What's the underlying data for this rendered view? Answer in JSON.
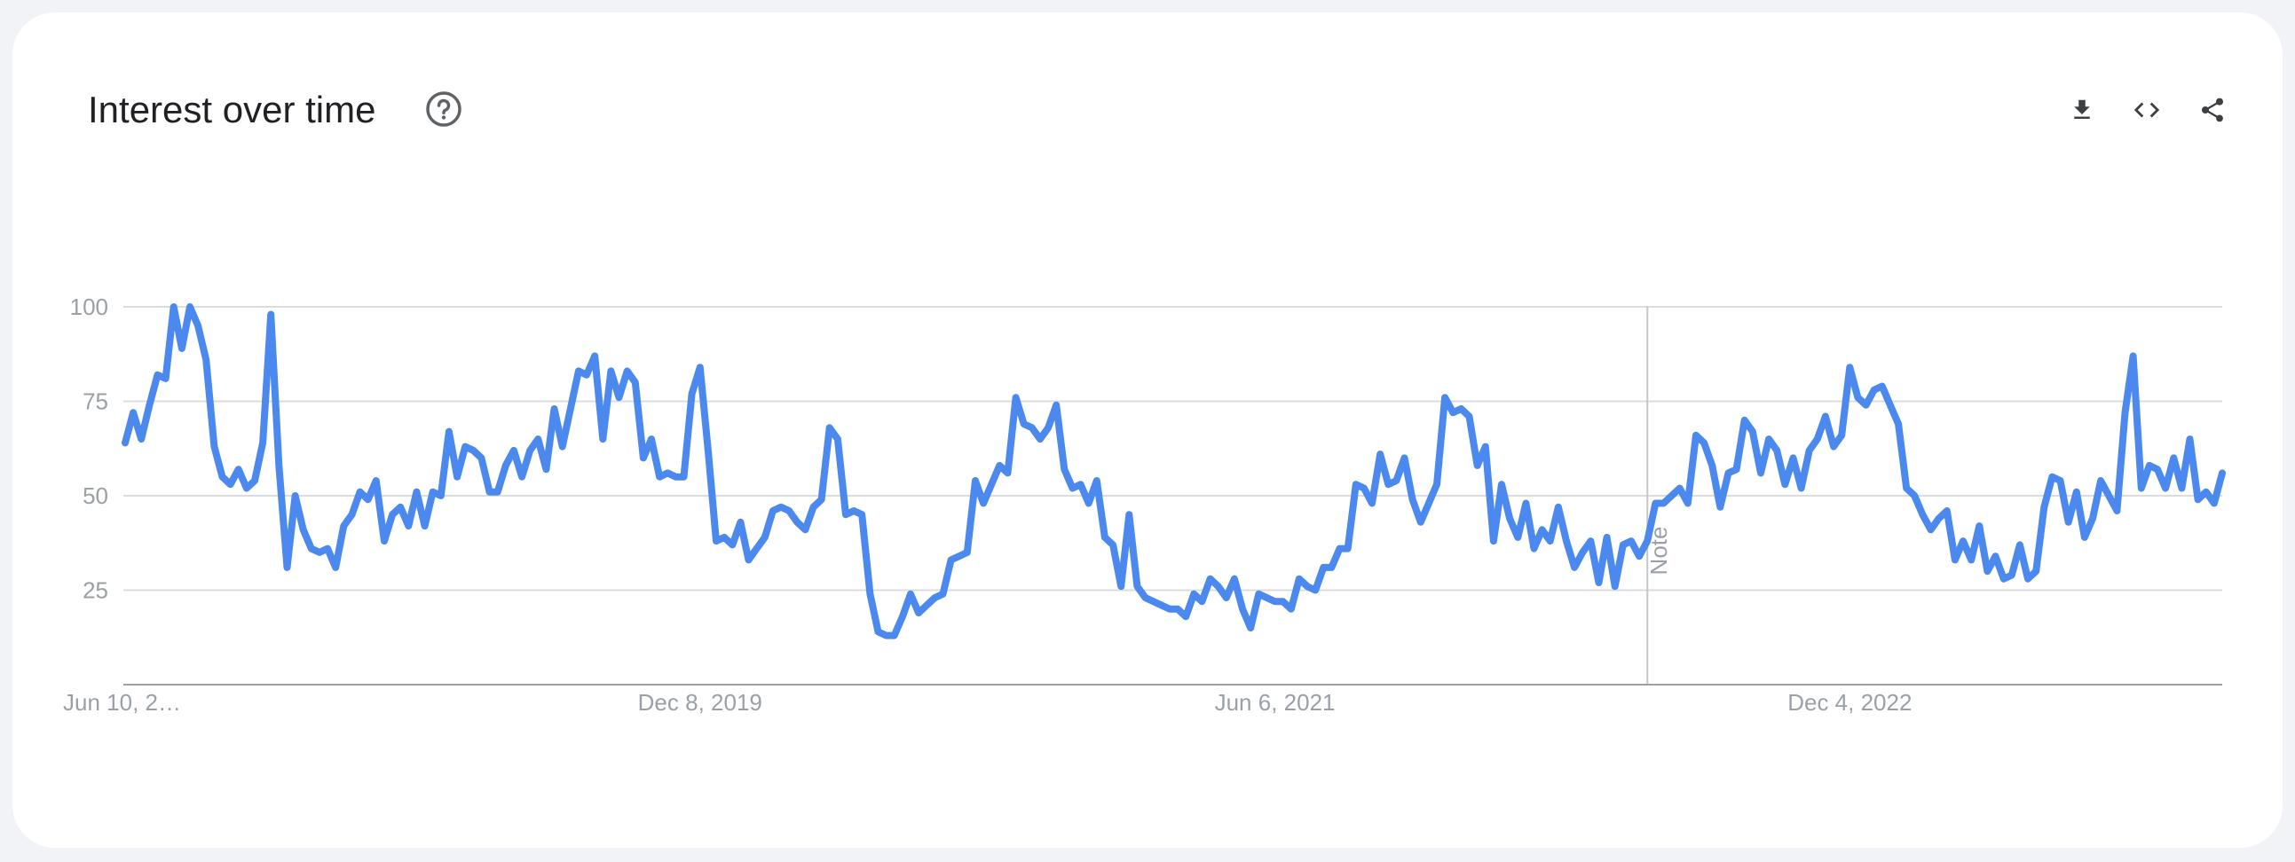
{
  "header": {
    "title": "Interest over time"
  },
  "icons": {
    "help": "help-circle-icon",
    "download": "download-icon",
    "embed": "code-icon",
    "share": "share-icon"
  },
  "colors": {
    "line": "#4b89ef",
    "grid": "#dadce0",
    "axis_text": "#9aa0a6"
  },
  "chart_data": {
    "type": "line",
    "title": "Interest over time",
    "xlabel": "",
    "ylabel": "",
    "ylim": [
      0,
      100
    ],
    "yticks": [
      25,
      50,
      75,
      100
    ],
    "x_tick_labels": [
      "Jun 10, 2…",
      "Dec 8, 2019",
      "Jun 6, 2021",
      "Dec 4, 2022"
    ],
    "annotation": {
      "label": "Note",
      "x_index": 188
    },
    "legend": "none",
    "grid": true,
    "series": [
      {
        "values": [
          64,
          72,
          65,
          74,
          82,
          81,
          100,
          89,
          100,
          95,
          86,
          63,
          55,
          53,
          57,
          52,
          54,
          64,
          98,
          58,
          31,
          50,
          41,
          36,
          35,
          36,
          31,
          42,
          45,
          51,
          49,
          54,
          38,
          45,
          47,
          42,
          51,
          42,
          51,
          50,
          67,
          55,
          63,
          62,
          60,
          51,
          51,
          58,
          62,
          55,
          62,
          65,
          57,
          73,
          63,
          73,
          83,
          82,
          87,
          65,
          83,
          76,
          83,
          80,
          60,
          65,
          55,
          56,
          55,
          55,
          77,
          84,
          62,
          38,
          39,
          37,
          43,
          33,
          36,
          39,
          46,
          47,
          46,
          43,
          41,
          47,
          49,
          68,
          65,
          45,
          46,
          45,
          24,
          14,
          13,
          13,
          18,
          24,
          19,
          21,
          23,
          24,
          33,
          34,
          35,
          54,
          48,
          53,
          58,
          56,
          76,
          69,
          68,
          65,
          68,
          74,
          57,
          52,
          53,
          48,
          54,
          39,
          37,
          26,
          45,
          26,
          23,
          22,
          21,
          20,
          20,
          18,
          24,
          22,
          28,
          26,
          23,
          28,
          20,
          15,
          24,
          23,
          22,
          22,
          20,
          28,
          26,
          25,
          31,
          31,
          36,
          36,
          53,
          52,
          48,
          61,
          53,
          54,
          60,
          49,
          43,
          48,
          53,
          76,
          72,
          73,
          71,
          58,
          63,
          38,
          53,
          44,
          39,
          48,
          36,
          41,
          38,
          47,
          38,
          31,
          35,
          38,
          27,
          39,
          26,
          37,
          38,
          34,
          38,
          48,
          48,
          50,
          52,
          48,
          66,
          64,
          58,
          47,
          56,
          57,
          70,
          67,
          56,
          65,
          62,
          53,
          60,
          52,
          62,
          65,
          71,
          63,
          66,
          84,
          76,
          74,
          78,
          79,
          74,
          69,
          52,
          50,
          45,
          41,
          44,
          46,
          33,
          38,
          33,
          42,
          30,
          34,
          28,
          29,
          37,
          28,
          30,
          47,
          55,
          54,
          43,
          51,
          39,
          44,
          54,
          50,
          46,
          72,
          87,
          52,
          58,
          57,
          52,
          60,
          52,
          65,
          49,
          51,
          48,
          56
        ]
      }
    ]
  }
}
